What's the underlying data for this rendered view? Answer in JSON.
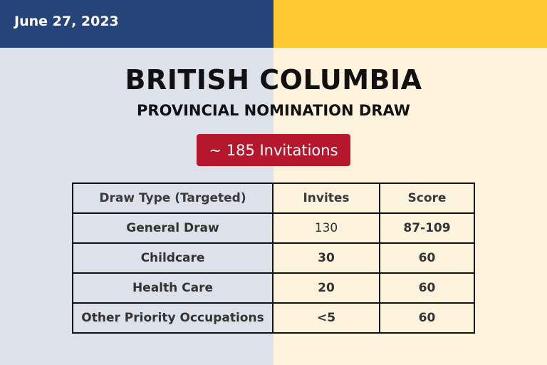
{
  "header": {
    "date": "June 27, 2023",
    "colors": {
      "left_band": "#26437a",
      "right_band": "#ffc934"
    }
  },
  "title": "BRITISH COLUMBIA",
  "subtitle": "PROVINCIAL NOMINATION DRAW",
  "badge": {
    "text": "~ 185 Invitations",
    "color": "#b5172c"
  },
  "table": {
    "headers": [
      "Draw Type (Targeted)",
      "Invites",
      "Score"
    ],
    "rows": [
      [
        "General Draw",
        "130",
        "87-109"
      ],
      [
        "Childcare",
        "30",
        "60"
      ],
      [
        "Health Care",
        "20",
        "60"
      ],
      [
        "Other Priority Occupations",
        "<5",
        "60"
      ]
    ]
  }
}
